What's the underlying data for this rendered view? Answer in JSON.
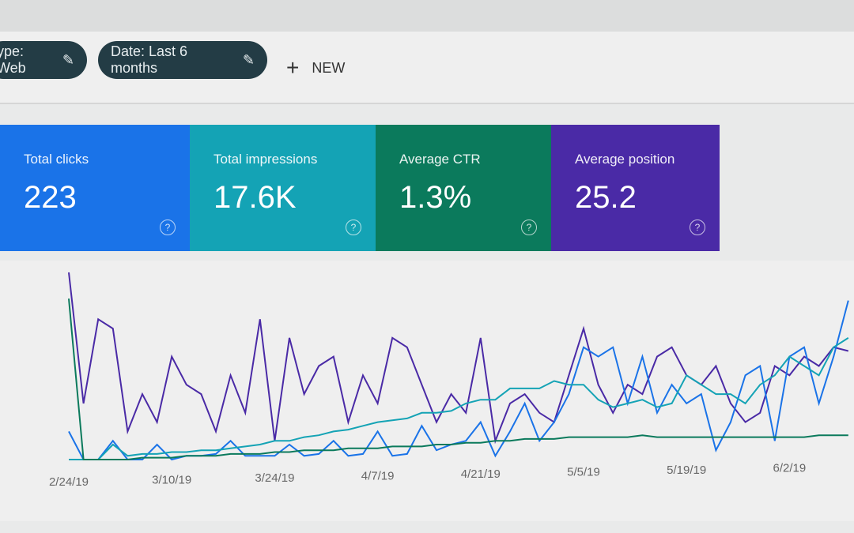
{
  "filters": {
    "chips": [
      {
        "label": "ype: Web",
        "icon": "pencil-icon"
      },
      {
        "label": "Date: Last 6 months",
        "icon": "pencil-icon"
      }
    ],
    "new_label": "NEW"
  },
  "cards": [
    {
      "label": "Total clicks",
      "value": "223",
      "color": "#1a73e8"
    },
    {
      "label": "Total impressions",
      "value": "17.6K",
      "color": "#14a3b5"
    },
    {
      "label": "Average CTR",
      "value": "1.3%",
      "color": "#0b7a5c"
    },
    {
      "label": "Average position",
      "value": "25.2",
      "color": "#4a2aa6"
    }
  ],
  "chart_data": {
    "type": "line",
    "x_start": "2/24/19",
    "x_step_days": 2,
    "x_tick_labels": [
      "2/24/19",
      "3/10/19",
      "3/24/19",
      "4/7/19",
      "4/21/19",
      "5/5/19",
      "5/19/19",
      "6/2/19"
    ],
    "grid": false,
    "series": [
      {
        "color": "#4a2aa6",
        "values": [
          100,
          30,
          75,
          70,
          15,
          35,
          20,
          55,
          40,
          35,
          15,
          45,
          25,
          75,
          10,
          65,
          35,
          50,
          55,
          20,
          45,
          30,
          65,
          60,
          40,
          20,
          35,
          25,
          65,
          10,
          30,
          35,
          25,
          20,
          45,
          70,
          40,
          25,
          40,
          35,
          55,
          60,
          45,
          40,
          50,
          30,
          20,
          25,
          50,
          45,
          55,
          50,
          60,
          58
        ]
      },
      {
        "color": "#1a73e8",
        "values": [
          15,
          0,
          0,
          10,
          0,
          0,
          8,
          0,
          2,
          2,
          3,
          10,
          2,
          2,
          2,
          8,
          2,
          3,
          10,
          2,
          3,
          15,
          2,
          3,
          18,
          5,
          8,
          10,
          20,
          2,
          15,
          30,
          10,
          20,
          35,
          60,
          55,
          60,
          30,
          55,
          25,
          40,
          30,
          35,
          5,
          20,
          45,
          50,
          10,
          55,
          60,
          30,
          55,
          85
        ]
      },
      {
        "color": "#14a3b5",
        "values": [
          0,
          0,
          0,
          8,
          2,
          3,
          3,
          4,
          4,
          5,
          5,
          6,
          7,
          8,
          10,
          10,
          12,
          13,
          15,
          16,
          18,
          20,
          21,
          22,
          25,
          25,
          26,
          30,
          32,
          32,
          38,
          38,
          38,
          42,
          40,
          40,
          32,
          28,
          30,
          32,
          28,
          30,
          45,
          40,
          35,
          35,
          30,
          40,
          45,
          55,
          50,
          45,
          60,
          65
        ]
      },
      {
        "color": "#0b7a5c",
        "values": [
          86,
          0,
          0,
          0,
          0,
          1,
          1,
          1,
          2,
          2,
          2,
          3,
          3,
          3,
          4,
          4,
          5,
          5,
          5,
          6,
          6,
          6,
          7,
          7,
          7,
          8,
          8,
          9,
          9,
          10,
          10,
          11,
          11,
          11,
          12,
          12,
          12,
          12,
          12,
          13,
          12,
          12,
          12,
          12,
          12,
          12,
          12,
          12,
          12,
          12,
          12,
          13,
          13,
          13
        ]
      }
    ]
  }
}
